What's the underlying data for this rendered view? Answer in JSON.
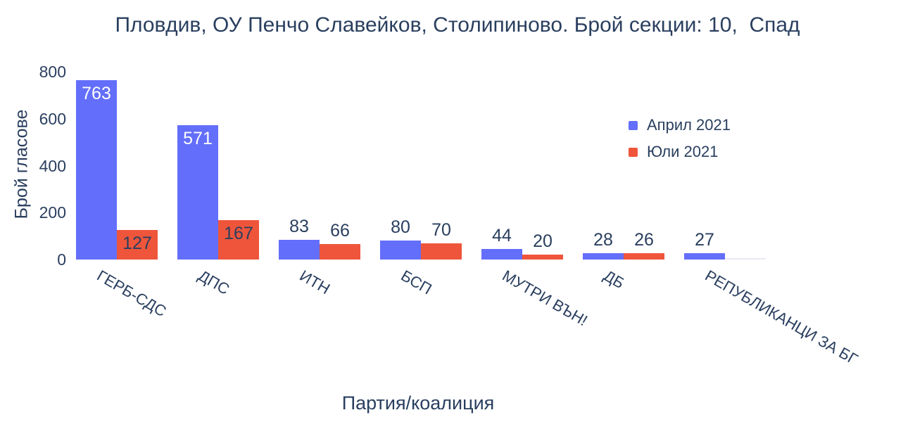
{
  "colors": {
    "text": "#2a3f5f",
    "background": "#ffffff",
    "april": "#636efa",
    "july": "#ef553b",
    "inside_label_april": "#ffffff",
    "zero_bar": "#e9e9f5"
  },
  "chart_data": {
    "type": "bar",
    "title": "Пловдив, ОУ Пенчо Славейков, Столипиново. Брой секции: 10,  Спад",
    "xlabel": "Партия/коалиция",
    "ylabel": "Брой гласове",
    "ylim": [
      0,
      800
    ],
    "yticks": [
      0,
      200,
      400,
      600,
      800
    ],
    "grid": false,
    "legend_position": "top-right",
    "categories": [
      "ГЕРБ-СДС",
      "ДПС",
      "ИТН",
      "БСП",
      "МУТРИ ВЪН!",
      "ДБ",
      "РЕПУБЛИКАНЦИ ЗА БГ"
    ],
    "series": [
      {
        "name": "Април 2021",
        "color": "#636efa",
        "values": [
          763,
          571,
          83,
          80,
          44,
          28,
          27
        ]
      },
      {
        "name": "Юли 2021",
        "color": "#ef553b",
        "values": [
          127,
          167,
          66,
          70,
          20,
          26,
          0
        ]
      }
    ],
    "bar_value_labels": [
      763,
      127,
      571,
      167,
      83,
      66,
      80,
      70,
      44,
      20,
      28,
      26,
      27
    ]
  }
}
